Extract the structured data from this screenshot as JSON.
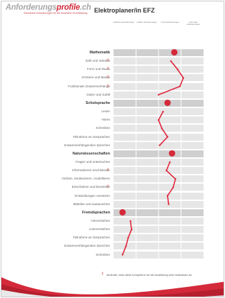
{
  "header": {
    "logo": {
      "main": "Anforderungs",
      "accent": "profile",
      "suffix": ".ch",
      "tagline": "Schulische Anforderungen für die berufliche Grundbildung"
    },
    "title": "Elektroplaner/in EFZ"
  },
  "columns": [
    "einfache Anforderungen",
    "mittlere Anforderungen",
    "hohe Anforderungen",
    "sehr hohe Anforderungen"
  ],
  "sections": [
    {
      "name": "Mathematik",
      "level": 2.7,
      "items": [
        {
          "label": "Zahl und Variable",
          "level": 2.55,
          "important": true
        },
        {
          "label": "Form und Raum",
          "level": 2.85,
          "important": true
        },
        {
          "label": "Grössen und Masse",
          "level": 3.1,
          "important": true
        },
        {
          "label": "Funktionale Zusammenhänge",
          "level": 2.95,
          "important": true
        },
        {
          "label": "Daten und Zufall",
          "level": 2.0,
          "important": false
        }
      ]
    },
    {
      "name": "Schulsprache",
      "level": 2.4,
      "items": [
        {
          "label": "Lesen",
          "level": 2.2,
          "important": false
        },
        {
          "label": "Hören",
          "level": 2.0,
          "important": false
        },
        {
          "label": "Schreiben",
          "level": 2.15,
          "important": false
        },
        {
          "label": "Teilnahme an Gesprächen",
          "level": 2.4,
          "important": false
        },
        {
          "label": "Zusammenhängendes Sprechen",
          "level": 2.05,
          "important": false
        }
      ]
    },
    {
      "name": "Naturwissenschaften",
      "level": 2.6,
      "items": [
        {
          "label": "Fragen und untersuchen",
          "level": 2.5,
          "important": false
        },
        {
          "label": "Informationen erschliessen",
          "level": 2.35,
          "important": true
        },
        {
          "label": "Ordnen, strukturieren, modellieren",
          "level": 2.75,
          "important": false
        },
        {
          "label": "Einschätzen und beurteilen",
          "level": 2.65,
          "important": true
        },
        {
          "label": "Entwicklungen umsetzen",
          "level": 2.4,
          "important": false
        },
        {
          "label": "Mitteilen und austauschen",
          "level": 2.45,
          "important": false
        }
      ]
    },
    {
      "name": "Fremdsprachen",
      "level": 0.4,
      "items": [
        {
          "label": "Hörverstehen",
          "level": 0.75,
          "important": false
        },
        {
          "label": "Leseverstehen",
          "level": 0.8,
          "important": false
        },
        {
          "label": "Teilnahme an Gesprächen",
          "level": 0.65,
          "important": false
        },
        {
          "label": "Zusammenhängendes Sprechen",
          "level": 0.55,
          "important": false
        },
        {
          "label": "Schreiben",
          "level": 0.4,
          "important": false
        }
      ]
    }
  ],
  "legend": {
    "mark": "!",
    "text": "bedeutet, dass diese Kompetenz für die Ausbildung sehr bedeutsam ist."
  },
  "colors": {
    "accent": "#d3293a",
    "band": "#e6e6e6",
    "band_section": "#cfcfcf",
    "line": "#e0243a"
  }
}
